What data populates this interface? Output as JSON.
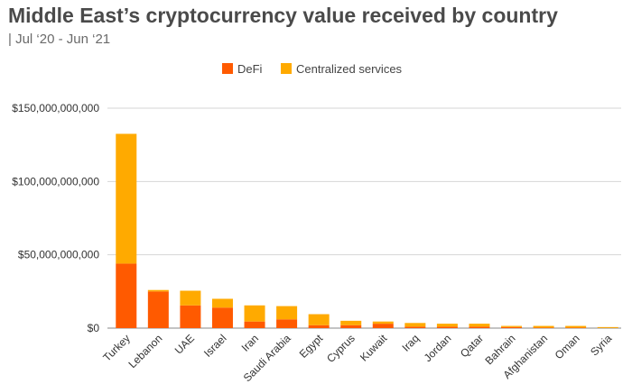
{
  "chart_data": {
    "type": "bar",
    "stacked": true,
    "title": "Middle East’s cryptocurrency value received by country",
    "subtitle": "| Jul ‘20 - Jun ‘21",
    "xlabel": "",
    "ylabel": "",
    "ylim": [
      0,
      150000000000
    ],
    "yticks": [
      0,
      50000000000,
      100000000000,
      150000000000
    ],
    "ytick_labels": [
      "$0",
      "$50,000,000,000",
      "$100,000,000,000",
      "$150,000,000,000"
    ],
    "grid": true,
    "legend_position": "top-center",
    "categories": [
      "Turkey",
      "Lebanon",
      "UAE",
      "Israel",
      "Iran",
      "Saudi Arabia",
      "Egypt",
      "Cyprus",
      "Kuwait",
      "Iraq",
      "Jordan",
      "Qatar",
      "Bahrain",
      "Afghanistan",
      "Oman",
      "Syria"
    ],
    "series": [
      {
        "name": "DeFi",
        "color": "#ff5a00",
        "values": [
          44000000000,
          25000000000,
          15500000000,
          14000000000,
          4500000000,
          6000000000,
          2000000000,
          2000000000,
          3000000000,
          1000000000,
          1000000000,
          1000000000,
          700000000,
          300000000,
          300000000,
          100000000
        ]
      },
      {
        "name": "Centralized services",
        "color": "#ffaa00",
        "values": [
          88500000000,
          1000000000,
          10000000000,
          6000000000,
          11000000000,
          9000000000,
          7500000000,
          3000000000,
          1500000000,
          2500000000,
          2000000000,
          2000000000,
          800000000,
          1200000000,
          1200000000,
          600000000
        ]
      }
    ]
  }
}
